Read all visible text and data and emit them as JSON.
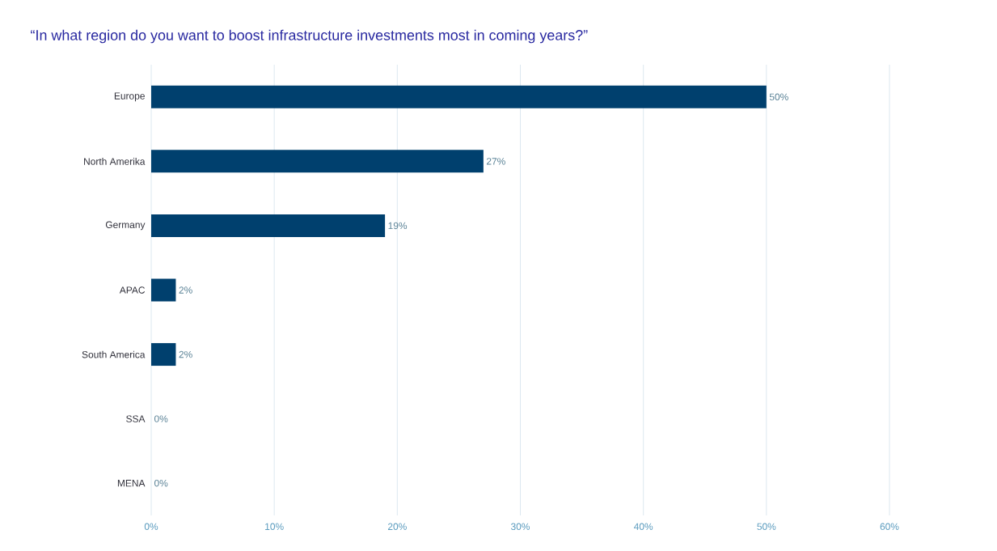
{
  "chart_data": {
    "type": "bar",
    "orientation": "horizontal",
    "title": "“In what region do you want to boost infrastructure investments most in coming years?”",
    "categories": [
      "Europe",
      "North Amerika",
      "Germany",
      "APAC",
      "South America",
      "SSA",
      "MENA"
    ],
    "values": [
      50,
      27,
      19,
      2,
      2,
      0,
      0
    ],
    "value_labels": [
      "50%",
      "27%",
      "19%",
      "2%",
      "2%",
      "0%",
      "0%"
    ],
    "color": "#00406e",
    "xlim": [
      0,
      60
    ],
    "xticks": [
      {
        "value": 0,
        "label": "0%"
      },
      {
        "value": 10,
        "label": "10%"
      },
      {
        "value": 20,
        "label": "20%"
      },
      {
        "value": 30,
        "label": "30%"
      },
      {
        "value": 40,
        "label": "40%"
      },
      {
        "value": 50,
        "label": "50%"
      },
      {
        "value": 60,
        "label": "60%"
      }
    ],
    "grid": "x"
  }
}
